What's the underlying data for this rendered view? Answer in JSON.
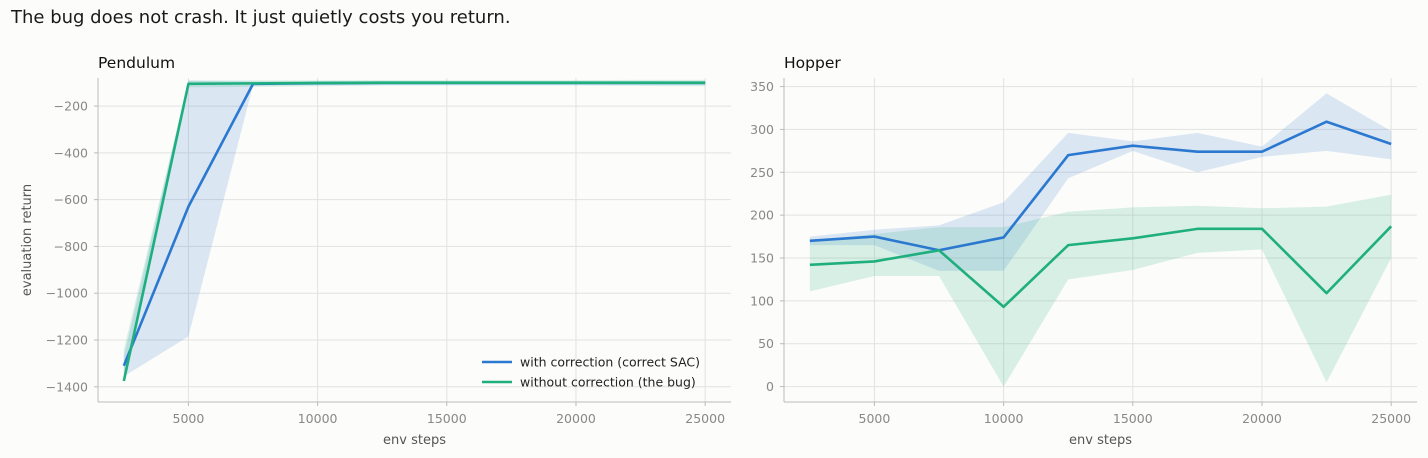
{
  "figure": {
    "suptitle": "The bug does not crash. It just quietly costs you return.",
    "colors": {
      "correct": "#2b78d0",
      "bug": "#1faf7f",
      "background": "#fcfcfa",
      "grid": "#e2e2e2"
    }
  },
  "chart_data": [
    {
      "type": "line",
      "title": "Pendulum",
      "xlabel": "env steps",
      "ylabel": "evaluation return",
      "xlim": [
        1500,
        26000
      ],
      "ylim": [
        -1465,
        -80
      ],
      "xticks": [
        5000,
        10000,
        15000,
        20000,
        25000
      ],
      "yticks": [
        -200,
        -400,
        -600,
        -800,
        -1000,
        -1200,
        -1400
      ],
      "grid": true,
      "legend": {
        "placement": "lower-right"
      },
      "x": [
        2500,
        5000,
        7500,
        10000,
        12500,
        15000,
        17500,
        20000,
        22500,
        25000
      ],
      "series": [
        {
          "name": "with correction (correct SAC)",
          "color": "#2b78d0",
          "values": [
            -1310,
            -630,
            -105,
            -102,
            -101,
            -101,
            -101,
            -101,
            -101,
            -101
          ],
          "lower": [
            -1355,
            -1185,
            -112,
            -110,
            -108,
            -108,
            -108,
            -108,
            -108,
            -108
          ],
          "upper": [
            -1270,
            -92,
            -95,
            -95,
            -94,
            -94,
            -94,
            -94,
            -94,
            -94
          ]
        },
        {
          "name": "without correction (the bug)",
          "color": "#1faf7f",
          "values": [
            -1375,
            -105,
            -103,
            -101,
            -100,
            -100,
            -100,
            -100,
            -100,
            -100
          ],
          "lower": [
            -1380,
            -120,
            -118,
            -115,
            -112,
            -112,
            -112,
            -112,
            -114,
            -115
          ],
          "upper": [
            -1240,
            -90,
            -90,
            -90,
            -89,
            -89,
            -89,
            -89,
            -88,
            -88
          ]
        }
      ]
    },
    {
      "type": "line",
      "title": "Hopper",
      "xlabel": "env steps",
      "ylabel": "",
      "xlim": [
        1500,
        26000
      ],
      "ylim": [
        -18,
        360
      ],
      "xticks": [
        5000,
        10000,
        15000,
        20000,
        25000
      ],
      "yticks": [
        0,
        50,
        100,
        150,
        200,
        250,
        300,
        350
      ],
      "grid": true,
      "x": [
        2500,
        5000,
        7500,
        10000,
        12500,
        15000,
        17500,
        20000,
        22500,
        25000
      ],
      "series": [
        {
          "name": "with correction (correct SAC)",
          "color": "#2b78d0",
          "values": [
            170,
            175,
            159,
            174,
            270,
            281,
            274,
            274,
            309,
            283
          ],
          "lower": [
            165,
            165,
            135,
            135,
            243,
            275,
            250,
            268,
            275,
            265
          ],
          "upper": [
            175,
            183,
            188,
            215,
            296,
            286,
            296,
            280,
            342,
            298
          ]
        },
        {
          "name": "without correction (the bug)",
          "color": "#1faf7f",
          "values": [
            142,
            146,
            159,
            93,
            165,
            173,
            184,
            184,
            109,
            187
          ],
          "lower": [
            111,
            129,
            129,
            0,
            125,
            136,
            156,
            160,
            5,
            150
          ],
          "upper": [
            170,
            178,
            186,
            186,
            204,
            209,
            211,
            208,
            210,
            224
          ]
        }
      ]
    }
  ]
}
